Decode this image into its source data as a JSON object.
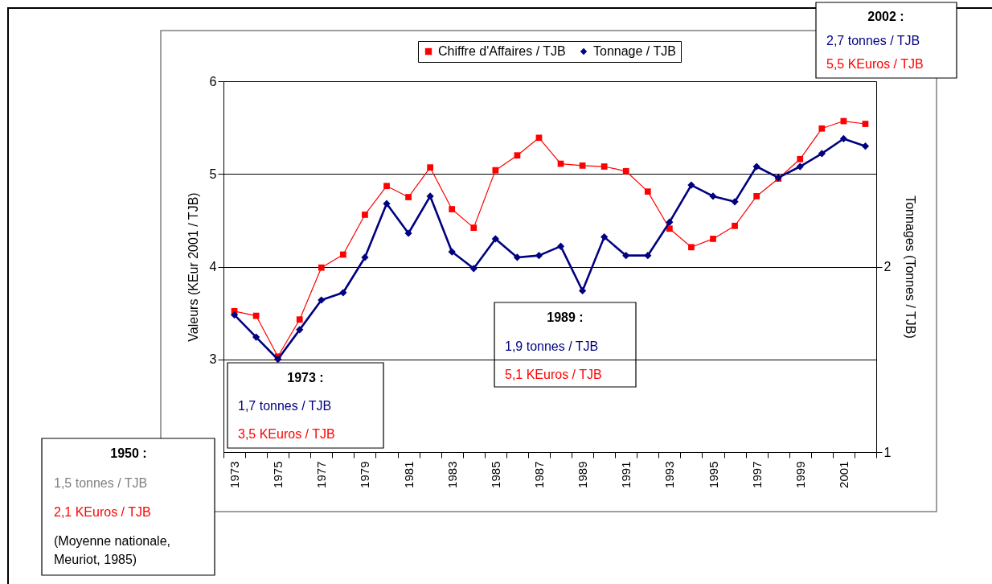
{
  "chart_data": {
    "type": "line",
    "categories": [
      "1973",
      null,
      "1975",
      null,
      "1977",
      null,
      "1979",
      null,
      "1981",
      null,
      "1983",
      null,
      "1985",
      null,
      "1987",
      null,
      "1989",
      null,
      "1991",
      null,
      "1993",
      null,
      "1995",
      null,
      "1997",
      null,
      "1999",
      null,
      "2001",
      null
    ],
    "ylabel": "Valeurs (KEur 2001 / TJB)",
    "y2label": "Tonnages (Tonnes / TJB)",
    "ylim": [
      2,
      6
    ],
    "yticks": [
      3,
      4,
      5,
      6
    ],
    "y2lim": [
      1,
      3
    ],
    "y2ticks": [
      1,
      2
    ],
    "grid": "y",
    "legend": "top",
    "series": [
      {
        "name": "Chiffre d'Affaires / TJB",
        "color": "#ff0000",
        "marker": "square",
        "values": [
          3.52,
          3.47,
          3.03,
          3.43,
          3.99,
          4.13,
          4.56,
          4.87,
          4.75,
          5.07,
          4.62,
          4.42,
          5.04,
          5.2,
          5.39,
          5.11,
          5.09,
          5.08,
          5.03,
          4.81,
          4.41,
          4.21,
          4.3,
          4.44,
          4.76,
          4.95,
          5.16,
          5.49,
          5.57,
          5.54
        ]
      },
      {
        "name": "Tonnage / TJB",
        "color": "#000080",
        "marker": "diamond",
        "axis": "y2",
        "values": [
          1.74,
          1.62,
          1.5,
          1.66,
          1.82,
          1.86,
          2.05,
          2.34,
          2.18,
          2.38,
          2.08,
          1.99,
          2.15,
          2.05,
          2.06,
          2.11,
          1.87,
          2.16,
          2.06,
          2.06,
          2.24,
          2.44,
          2.38,
          2.35,
          2.54,
          2.48,
          2.54,
          2.61,
          2.69,
          2.65
        ]
      }
    ],
    "annotations": [
      "1950 :",
      "1,5 tonnes / TJB",
      "2,1 KEuros / TJB",
      "(Moyenne nationale,\nMeuriot, 1985)",
      "1973 :",
      "1,7 tonnes / TJB",
      "3,5 KEuros / TJB",
      "1989 :",
      "1,9 tonnes / TJB",
      "5,1 KEuros / TJB",
      "2002 :",
      "2,7 tonnes / TJB",
      "5,5 KEuros / TJB"
    ]
  }
}
